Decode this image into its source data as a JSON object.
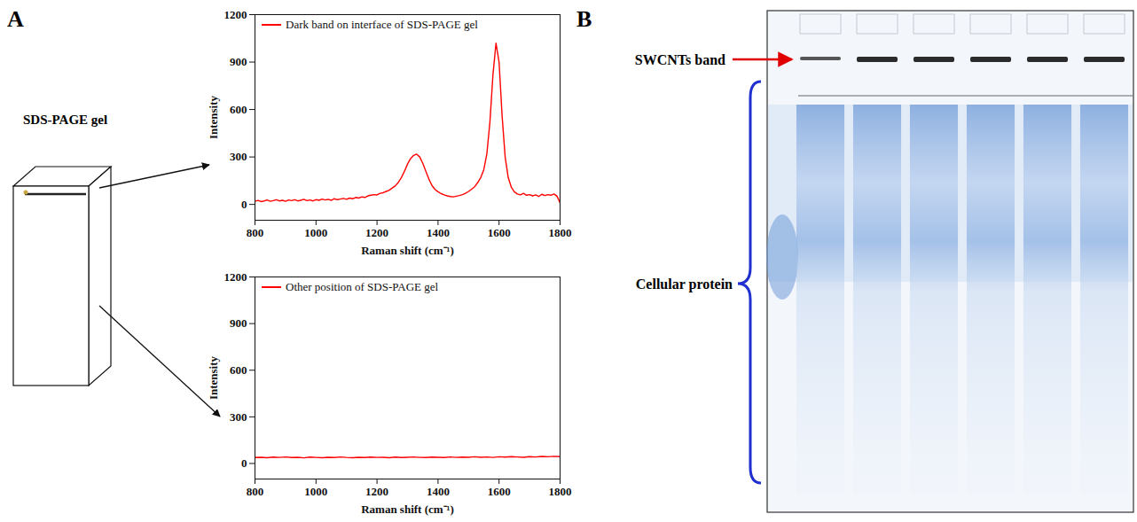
{
  "panel_labels": [
    "A",
    "B"
  ],
  "gel_diagram": {
    "label": "SDS-PAGE gel"
  },
  "chart_data": [
    {
      "type": "line",
      "xlabel": "Raman shift (cm⁻¹)",
      "ylabel": "Intensity",
      "xlim": [
        800,
        1800
      ],
      "xticks": [
        800,
        1000,
        1200,
        1400,
        1600,
        1800
      ],
      "ylim": [
        -100,
        1200
      ],
      "yticks": [
        0,
        300,
        600,
        900,
        1200
      ],
      "legend": "top-left",
      "x": [
        800,
        810,
        820,
        830,
        840,
        850,
        860,
        870,
        880,
        890,
        900,
        910,
        920,
        930,
        940,
        950,
        960,
        970,
        980,
        990,
        1000,
        1010,
        1020,
        1030,
        1040,
        1050,
        1060,
        1070,
        1080,
        1090,
        1100,
        1110,
        1120,
        1130,
        1140,
        1150,
        1160,
        1170,
        1180,
        1190,
        1200,
        1210,
        1220,
        1230,
        1240,
        1250,
        1260,
        1270,
        1280,
        1290,
        1300,
        1310,
        1320,
        1330,
        1340,
        1350,
        1360,
        1370,
        1380,
        1390,
        1400,
        1410,
        1420,
        1430,
        1440,
        1450,
        1460,
        1470,
        1480,
        1490,
        1500,
        1510,
        1520,
        1530,
        1540,
        1550,
        1560,
        1570,
        1580,
        1590,
        1600,
        1610,
        1620,
        1630,
        1640,
        1650,
        1660,
        1670,
        1680,
        1690,
        1700,
        1710,
        1720,
        1730,
        1740,
        1750,
        1760,
        1770,
        1780,
        1790,
        1800
      ],
      "series": [
        {
          "name": "Dark band on interface of SDS-PAGE gel",
          "color": "#ff0000",
          "values": [
            20,
            25,
            18,
            22,
            28,
            20,
            24,
            30,
            22,
            26,
            20,
            28,
            24,
            30,
            22,
            26,
            32,
            24,
            28,
            22,
            30,
            26,
            34,
            28,
            32,
            26,
            36,
            30,
            34,
            38,
            32,
            40,
            36,
            44,
            40,
            48,
            44,
            54,
            58,
            62,
            60,
            70,
            74,
            82,
            90,
            104,
            118,
            140,
            170,
            210,
            255,
            290,
            310,
            318,
            300,
            260,
            210,
            160,
            120,
            95,
            80,
            68,
            60,
            54,
            50,
            48,
            52,
            56,
            62,
            70,
            82,
            96,
            112,
            138,
            170,
            220,
            320,
            520,
            820,
            1020,
            900,
            560,
            300,
            170,
            110,
            80,
            66,
            60,
            70,
            58,
            62,
            54,
            60,
            50,
            64,
            56,
            62,
            58,
            66,
            52,
            10
          ]
        }
      ]
    },
    {
      "type": "line",
      "xlabel": "Raman shift (cm⁻¹)",
      "ylabel": "Intensity",
      "xlim": [
        800,
        1800
      ],
      "xticks": [
        800,
        1000,
        1200,
        1400,
        1600,
        1800
      ],
      "ylim": [
        -100,
        1200
      ],
      "yticks": [
        0,
        300,
        600,
        900,
        1200
      ],
      "legend": "top-left",
      "x": [
        800,
        820,
        840,
        860,
        880,
        900,
        920,
        940,
        960,
        980,
        1000,
        1020,
        1040,
        1060,
        1080,
        1100,
        1120,
        1140,
        1160,
        1180,
        1200,
        1220,
        1240,
        1260,
        1280,
        1300,
        1320,
        1340,
        1360,
        1380,
        1400,
        1420,
        1440,
        1460,
        1480,
        1500,
        1520,
        1540,
        1560,
        1580,
        1600,
        1620,
        1640,
        1660,
        1680,
        1700,
        1720,
        1740,
        1760,
        1780,
        1800
      ],
      "series": [
        {
          "name": "Other position of SDS-PAGE gel",
          "color": "#ff0000",
          "values": [
            38,
            40,
            37,
            41,
            39,
            42,
            38,
            40,
            36,
            41,
            39,
            37,
            40,
            38,
            42,
            39,
            37,
            40,
            38,
            41,
            39,
            40,
            37,
            41,
            38,
            40,
            42,
            39,
            38,
            41,
            40,
            38,
            42,
            39,
            41,
            40,
            43,
            40,
            42,
            39,
            43,
            41,
            44,
            42,
            40,
            44,
            42,
            45,
            43,
            46,
            44
          ]
        }
      ]
    }
  ],
  "gel_image": {
    "lanes": 6,
    "band_label": "SWCNTs band",
    "protein_label": "Cellular protein"
  }
}
